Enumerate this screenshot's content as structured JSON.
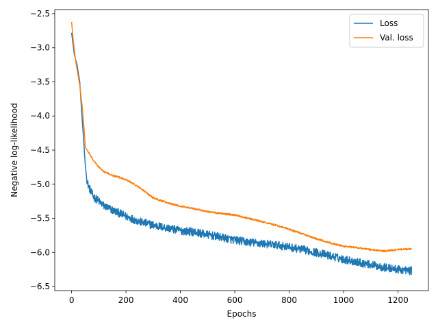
{
  "chart_data": {
    "type": "line",
    "title": "",
    "xlabel": "Epochs",
    "ylabel": "Negative log-likelihood",
    "xlim": [
      -62,
      1312
    ],
    "ylim": [
      -6.56,
      -2.44
    ],
    "xticks": [
      0,
      200,
      400,
      600,
      800,
      1000,
      1200
    ],
    "xtick_labels": [
      "0",
      "200",
      "400",
      "600",
      "800",
      "1000",
      "1200"
    ],
    "yticks": [
      -2.5,
      -3.0,
      -3.5,
      -4.0,
      -4.5,
      -5.0,
      -5.5,
      -6.0,
      -6.5
    ],
    "ytick_labels": [
      "−2.5",
      "−3.0",
      "−3.5",
      "−4.0",
      "−4.5",
      "−5.0",
      "−5.5",
      "−6.0",
      "−6.5"
    ],
    "grid": false,
    "legend_position": "top-right",
    "series": [
      {
        "name": "Loss",
        "color": "#1f77b4",
        "noise": 0.06,
        "x": [
          0,
          10,
          20,
          30,
          38,
          45,
          50,
          55,
          60,
          70,
          80,
          100,
          120,
          150,
          200,
          250,
          300,
          350,
          400,
          450,
          500,
          550,
          600,
          650,
          700,
          750,
          800,
          850,
          900,
          950,
          1000,
          1050,
          1100,
          1150,
          1200,
          1250
        ],
        "y": [
          -2.78,
          -3.1,
          -3.25,
          -3.5,
          -4.0,
          -4.4,
          -4.7,
          -4.9,
          -5.0,
          -5.1,
          -5.18,
          -5.25,
          -5.32,
          -5.38,
          -5.47,
          -5.55,
          -5.6,
          -5.64,
          -5.68,
          -5.7,
          -5.74,
          -5.78,
          -5.82,
          -5.85,
          -5.87,
          -5.89,
          -5.92,
          -5.96,
          -6.0,
          -6.05,
          -6.1,
          -6.14,
          -6.18,
          -6.22,
          -6.25,
          -6.27
        ]
      },
      {
        "name": "Val. loss",
        "color": "#ff7f0e",
        "noise": 0.012,
        "x": [
          0,
          5,
          15,
          30,
          40,
          48,
          50,
          60,
          80,
          100,
          120,
          150,
          200,
          250,
          300,
          350,
          400,
          450,
          500,
          550,
          600,
          650,
          700,
          750,
          800,
          850,
          900,
          950,
          1000,
          1050,
          1100,
          1150,
          1200,
          1250
        ],
        "y": [
          -2.62,
          -2.85,
          -3.2,
          -3.55,
          -3.9,
          -4.3,
          -4.45,
          -4.52,
          -4.65,
          -4.75,
          -4.82,
          -4.87,
          -4.93,
          -5.05,
          -5.2,
          -5.27,
          -5.32,
          -5.36,
          -5.4,
          -5.43,
          -5.45,
          -5.5,
          -5.55,
          -5.6,
          -5.66,
          -5.73,
          -5.8,
          -5.86,
          -5.91,
          -5.93,
          -5.96,
          -5.98,
          -5.96,
          -5.95
        ]
      }
    ]
  }
}
